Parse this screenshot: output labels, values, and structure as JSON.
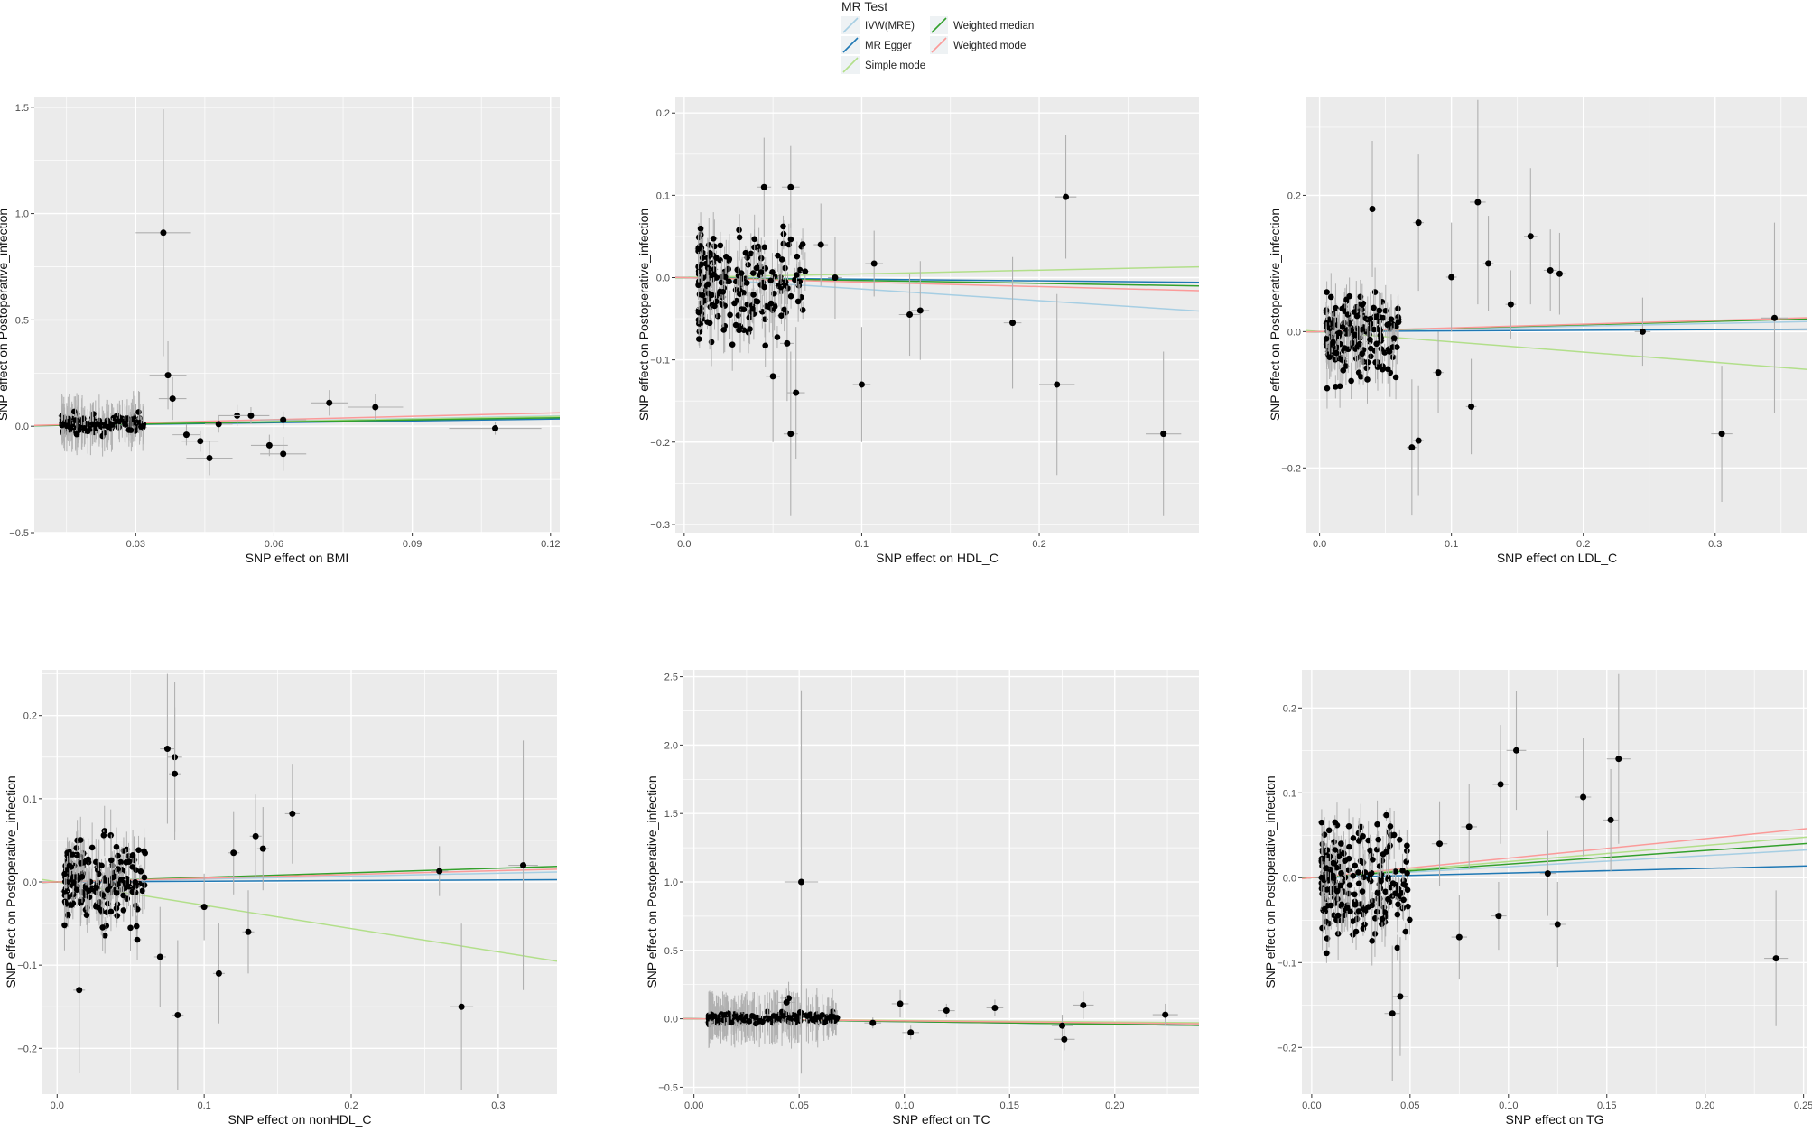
{
  "legend": {
    "title": "MR Test",
    "placement": "top-center",
    "items": [
      {
        "label": "IVW(MRE)",
        "color": "#a6cee3"
      },
      {
        "label": "MR Egger",
        "color": "#1f78b4"
      },
      {
        "label": "Simple mode",
        "color": "#b2df8a"
      },
      {
        "label": "Weighted median",
        "color": "#33a02c"
      },
      {
        "label": "Weighted mode",
        "color": "#fb9a99"
      }
    ]
  },
  "style": {
    "panel_bg": "#ebebeb",
    "grid_color": "#ffffff",
    "point_color": "#000000",
    "errorbar_color": "#b0b0b0"
  },
  "chart_data": [
    {
      "type": "scatter",
      "title": "",
      "xlabel": "SNP effect on BMI",
      "ylabel": "SNP effect on Postoperative_infection",
      "xlim": [
        0.008,
        0.122
      ],
      "ylim": [
        -0.5,
        1.55
      ],
      "xticks": [
        0.03,
        0.06,
        0.09,
        0.12
      ],
      "xtick_labels": [
        "0.03",
        "0.06",
        "0.09",
        "0.12"
      ],
      "yticks": [
        -0.5,
        0.0,
        0.5,
        1.0,
        1.5
      ],
      "ytick_labels": [
        "−0.5",
        "0.0",
        "0.5",
        "1.0",
        "1.5"
      ],
      "cluster": {
        "x": [
          0.014,
          0.032
        ],
        "y": [
          -0.06,
          0.08
        ],
        "n": 150
      },
      "points": [
        {
          "x": 0.036,
          "y": 0.91,
          "ex": 0.006,
          "ey": 0.58
        },
        {
          "x": 0.037,
          "y": 0.24,
          "ex": 0.004,
          "ey": 0.16
        },
        {
          "x": 0.038,
          "y": 0.13,
          "ex": 0.003,
          "ey": 0.1
        },
        {
          "x": 0.046,
          "y": -0.15,
          "ex": 0.005,
          "ey": 0.08
        },
        {
          "x": 0.052,
          "y": 0.05,
          "ex": 0.004,
          "ey": 0.05
        },
        {
          "x": 0.055,
          "y": 0.05,
          "ex": 0.004,
          "ey": 0.04
        },
        {
          "x": 0.059,
          "y": -0.09,
          "ex": 0.004,
          "ey": 0.05
        },
        {
          "x": 0.062,
          "y": 0.03,
          "ex": 0.005,
          "ey": 0.04
        },
        {
          "x": 0.062,
          "y": -0.13,
          "ex": 0.005,
          "ey": 0.08
        },
        {
          "x": 0.072,
          "y": 0.11,
          "ex": 0.004,
          "ey": 0.06
        },
        {
          "x": 0.082,
          "y": 0.09,
          "ex": 0.006,
          "ey": 0.06
        },
        {
          "x": 0.108,
          "y": -0.01,
          "ex": 0.01,
          "ey": 0.03
        },
        {
          "x": 0.044,
          "y": -0.07,
          "ex": 0.004,
          "ey": 0.05
        },
        {
          "x": 0.048,
          "y": 0.01,
          "ex": 0.003,
          "ey": 0.04
        },
        {
          "x": 0.041,
          "y": -0.04,
          "ex": 0.003,
          "ey": 0.05
        }
      ],
      "lines": [
        {
          "method": "IVW(MRE)",
          "slope": 0.4
        },
        {
          "method": "MR Egger",
          "slope": 0.28
        },
        {
          "method": "Simple mode",
          "slope": 0.38
        },
        {
          "method": "Weighted median",
          "slope": 0.33
        },
        {
          "method": "Weighted mode",
          "slope": 0.52
        }
      ]
    },
    {
      "type": "scatter",
      "title": "",
      "xlabel": "SNP effect on HDL_C",
      "ylabel": "SNP effect on Postoperative_infection",
      "xlim": [
        -0.005,
        0.29
      ],
      "ylim": [
        -0.31,
        0.22
      ],
      "xticks": [
        0.0,
        0.1,
        0.2
      ],
      "xtick_labels": [
        "0.0",
        "0.1",
        "0.2"
      ],
      "yticks": [
        -0.3,
        -0.2,
        -0.1,
        0.0,
        0.1,
        0.2
      ],
      "ytick_labels": [
        "−0.3",
        "−0.2",
        "−0.1",
        "0.0",
        "0.1",
        "0.2"
      ],
      "cluster": {
        "x": [
          0.008,
          0.07
        ],
        "y": [
          -0.1,
          0.08
        ],
        "n": 200
      },
      "points": [
        {
          "x": 0.06,
          "y": 0.11,
          "ex": 0.005,
          "ey": 0.05
        },
        {
          "x": 0.045,
          "y": 0.11,
          "ex": 0.004,
          "ey": 0.06
        },
        {
          "x": 0.06,
          "y": -0.19,
          "ex": 0.004,
          "ey": 0.1
        },
        {
          "x": 0.063,
          "y": -0.14,
          "ex": 0.005,
          "ey": 0.08
        },
        {
          "x": 0.1,
          "y": -0.13,
          "ex": 0.005,
          "ey": 0.07
        },
        {
          "x": 0.107,
          "y": 0.017,
          "ex": 0.005,
          "ey": 0.04
        },
        {
          "x": 0.127,
          "y": -0.045,
          "ex": 0.006,
          "ey": 0.05
        },
        {
          "x": 0.133,
          "y": -0.04,
          "ex": 0.005,
          "ey": 0.06
        },
        {
          "x": 0.185,
          "y": -0.055,
          "ex": 0.005,
          "ey": 0.08
        },
        {
          "x": 0.21,
          "y": -0.13,
          "ex": 0.01,
          "ey": 0.11
        },
        {
          "x": 0.215,
          "y": 0.098,
          "ex": 0.006,
          "ey": 0.075
        },
        {
          "x": 0.27,
          "y": -0.19,
          "ex": 0.01,
          "ey": 0.1
        },
        {
          "x": 0.085,
          "y": 0.0,
          "ex": 0.004,
          "ey": 0.05
        },
        {
          "x": 0.077,
          "y": 0.04,
          "ex": 0.004,
          "ey": 0.05
        },
        {
          "x": 0.05,
          "y": -0.12,
          "ex": 0.004,
          "ey": 0.08
        },
        {
          "x": 0.058,
          "y": -0.08,
          "ex": 0.004,
          "ey": 0.07
        }
      ],
      "lines": [
        {
          "method": "IVW(MRE)",
          "slope": -0.14
        },
        {
          "method": "MR Egger",
          "slope": -0.02
        },
        {
          "method": "Simple mode",
          "slope": 0.045
        },
        {
          "method": "Weighted median",
          "slope": -0.035
        },
        {
          "method": "Weighted mode",
          "slope": -0.055
        }
      ]
    },
    {
      "type": "scatter",
      "title": "",
      "xlabel": "SNP effect on LDL_C",
      "ylabel": "SNP effect on Postoperative_infection",
      "xlim": [
        -0.01,
        0.37
      ],
      "ylim": [
        -0.295,
        0.345
      ],
      "xticks": [
        0.0,
        0.1,
        0.2,
        0.3
      ],
      "xtick_labels": [
        "0.0",
        "0.1",
        "0.2",
        "0.3"
      ],
      "yticks": [
        -0.2,
        0.0,
        0.2
      ],
      "ytick_labels": [
        "−0.2",
        "0.0",
        "0.2"
      ],
      "cluster": {
        "x": [
          0.005,
          0.06
        ],
        "y": [
          -0.1,
          0.08
        ],
        "n": 200
      },
      "points": [
        {
          "x": 0.12,
          "y": 0.19,
          "ex": 0.006,
          "ey": 0.15
        },
        {
          "x": 0.04,
          "y": 0.18,
          "ex": 0.004,
          "ey": 0.1
        },
        {
          "x": 0.075,
          "y": 0.16,
          "ex": 0.004,
          "ey": 0.1
        },
        {
          "x": 0.16,
          "y": 0.14,
          "ex": 0.005,
          "ey": 0.1
        },
        {
          "x": 0.175,
          "y": 0.09,
          "ex": 0.005,
          "ey": 0.06
        },
        {
          "x": 0.182,
          "y": 0.085,
          "ex": 0.005,
          "ey": 0.06
        },
        {
          "x": 0.245,
          "y": 0.0,
          "ex": 0.006,
          "ey": 0.05
        },
        {
          "x": 0.305,
          "y": -0.15,
          "ex": 0.008,
          "ey": 0.1
        },
        {
          "x": 0.345,
          "y": 0.02,
          "ex": 0.01,
          "ey": 0.14
        },
        {
          "x": 0.07,
          "y": -0.17,
          "ex": 0.004,
          "ey": 0.1
        },
        {
          "x": 0.075,
          "y": -0.16,
          "ex": 0.004,
          "ey": 0.08
        },
        {
          "x": 0.115,
          "y": -0.11,
          "ex": 0.004,
          "ey": 0.07
        },
        {
          "x": 0.1,
          "y": 0.08,
          "ex": 0.004,
          "ey": 0.08
        },
        {
          "x": 0.128,
          "y": 0.1,
          "ex": 0.004,
          "ey": 0.07
        },
        {
          "x": 0.145,
          "y": 0.04,
          "ex": 0.004,
          "ey": 0.05
        },
        {
          "x": 0.09,
          "y": -0.06,
          "ex": 0.004,
          "ey": 0.06
        }
      ],
      "lines": [
        {
          "method": "IVW(MRE)",
          "slope": 0.04
        },
        {
          "method": "MR Egger",
          "slope": 0.01
        },
        {
          "method": "Simple mode",
          "slope": -0.15
        },
        {
          "method": "Weighted median",
          "slope": 0.05
        },
        {
          "method": "Weighted mode",
          "slope": 0.055
        }
      ]
    },
    {
      "type": "scatter",
      "title": "",
      "xlabel": "SNP effect on nonHDL_C",
      "ylabel": "SNP effect on Postoperative_infection",
      "xlim": [
        -0.01,
        0.34
      ],
      "ylim": [
        -0.255,
        0.255
      ],
      "xticks": [
        0.0,
        0.1,
        0.2,
        0.3
      ],
      "xtick_labels": [
        "0.0",
        "0.1",
        "0.2",
        "0.3"
      ],
      "yticks": [
        -0.2,
        -0.1,
        0.0,
        0.1,
        0.2
      ],
      "ytick_labels": [
        "−0.2",
        "−0.1",
        "0.0",
        "0.1",
        "0.2"
      ],
      "cluster": {
        "x": [
          0.005,
          0.06
        ],
        "y": [
          -0.08,
          0.08
        ],
        "n": 200
      },
      "points": [
        {
          "x": 0.075,
          "y": 0.16,
          "ex": 0.005,
          "ey": 0.09
        },
        {
          "x": 0.08,
          "y": 0.15,
          "ex": 0.005,
          "ey": 0.09
        },
        {
          "x": 0.08,
          "y": 0.13,
          "ex": 0.004,
          "ey": 0.08
        },
        {
          "x": 0.082,
          "y": -0.16,
          "ex": 0.004,
          "ey": 0.09
        },
        {
          "x": 0.11,
          "y": -0.11,
          "ex": 0.004,
          "ey": 0.06
        },
        {
          "x": 0.135,
          "y": 0.055,
          "ex": 0.004,
          "ey": 0.05
        },
        {
          "x": 0.14,
          "y": 0.04,
          "ex": 0.004,
          "ey": 0.05
        },
        {
          "x": 0.16,
          "y": 0.082,
          "ex": 0.005,
          "ey": 0.06
        },
        {
          "x": 0.26,
          "y": 0.013,
          "ex": 0.006,
          "ey": 0.03
        },
        {
          "x": 0.275,
          "y": -0.15,
          "ex": 0.008,
          "ey": 0.1
        },
        {
          "x": 0.317,
          "y": 0.02,
          "ex": 0.01,
          "ey": 0.15
        },
        {
          "x": 0.015,
          "y": -0.13,
          "ex": 0.004,
          "ey": 0.1
        },
        {
          "x": 0.13,
          "y": -0.06,
          "ex": 0.004,
          "ey": 0.05
        },
        {
          "x": 0.1,
          "y": -0.03,
          "ex": 0.004,
          "ey": 0.04
        },
        {
          "x": 0.07,
          "y": -0.09,
          "ex": 0.004,
          "ey": 0.06
        },
        {
          "x": 0.12,
          "y": 0.035,
          "ex": 0.004,
          "ey": 0.05
        }
      ],
      "lines": [
        {
          "method": "IVW(MRE)",
          "slope": 0.035
        },
        {
          "method": "MR Egger",
          "slope": 0.008
        },
        {
          "method": "Simple mode",
          "slope": -0.28
        },
        {
          "method": "Weighted median",
          "slope": 0.055
        },
        {
          "method": "Weighted mode",
          "slope": 0.045
        }
      ]
    },
    {
      "type": "scatter",
      "title": "",
      "xlabel": "SNP effect on TC",
      "ylabel": "SNP effect on Postoperative_infection",
      "xlim": [
        -0.005,
        0.24
      ],
      "ylim": [
        -0.55,
        2.55
      ],
      "xticks": [
        0.0,
        0.05,
        0.1,
        0.15,
        0.2
      ],
      "xtick_labels": [
        "0.00",
        "0.05",
        "0.10",
        "0.15",
        "0.20"
      ],
      "yticks": [
        -0.5,
        0.0,
        0.5,
        1.0,
        1.5,
        2.0,
        2.5
      ],
      "ytick_labels": [
        "−0.5",
        "0.0",
        "0.5",
        "1.0",
        "1.5",
        "2.0",
        "2.5"
      ],
      "cluster": {
        "x": [
          0.007,
          0.07
        ],
        "y": [
          -0.05,
          0.06
        ],
        "n": 230
      },
      "points": [
        {
          "x": 0.051,
          "y": 1.0,
          "ex": 0.008,
          "ey": 1.4
        },
        {
          "x": 0.045,
          "y": 0.15,
          "ex": 0.004,
          "ey": 0.12
        },
        {
          "x": 0.044,
          "y": 0.12,
          "ex": 0.004,
          "ey": 0.1
        },
        {
          "x": 0.098,
          "y": 0.11,
          "ex": 0.004,
          "ey": 0.1
        },
        {
          "x": 0.175,
          "y": -0.05,
          "ex": 0.005,
          "ey": 0.08
        },
        {
          "x": 0.176,
          "y": -0.15,
          "ex": 0.005,
          "ey": 0.08
        },
        {
          "x": 0.185,
          "y": 0.1,
          "ex": 0.005,
          "ey": 0.1
        },
        {
          "x": 0.224,
          "y": 0.03,
          "ex": 0.006,
          "ey": 0.08
        },
        {
          "x": 0.12,
          "y": 0.06,
          "ex": 0.004,
          "ey": 0.05
        },
        {
          "x": 0.143,
          "y": 0.08,
          "ex": 0.004,
          "ey": 0.06
        },
        {
          "x": 0.103,
          "y": -0.1,
          "ex": 0.004,
          "ey": 0.05
        },
        {
          "x": 0.085,
          "y": -0.03,
          "ex": 0.004,
          "ey": 0.04
        }
      ],
      "lines": [
        {
          "method": "IVW(MRE)",
          "slope": -0.17
        },
        {
          "method": "MR Egger",
          "slope": -0.2
        },
        {
          "method": "Simple mode",
          "slope": -0.12
        },
        {
          "method": "Weighted median",
          "slope": -0.2
        },
        {
          "method": "Weighted mode",
          "slope": -0.15
        }
      ]
    },
    {
      "type": "scatter",
      "title": "",
      "xlabel": "SNP effect on TG",
      "ylabel": "SNP effect on Postoperative_infection",
      "xlim": [
        -0.005,
        0.252
      ],
      "ylim": [
        -0.255,
        0.245
      ],
      "xticks": [
        0.0,
        0.05,
        0.1,
        0.15,
        0.2,
        0.25
      ],
      "xtick_labels": [
        "0.00",
        "0.05",
        "0.10",
        "0.15",
        "0.20",
        "0.25"
      ],
      "yticks": [
        -0.2,
        -0.1,
        0.0,
        0.1,
        0.2
      ],
      "ytick_labels": [
        "−0.2",
        "−0.1",
        "0.0",
        "0.1",
        "0.2"
      ],
      "cluster": {
        "x": [
          0.005,
          0.05
        ],
        "y": [
          -0.1,
          0.09
        ],
        "n": 230
      },
      "points": [
        {
          "x": 0.104,
          "y": 0.15,
          "ex": 0.005,
          "ey": 0.07
        },
        {
          "x": 0.156,
          "y": 0.14,
          "ex": 0.006,
          "ey": 0.1
        },
        {
          "x": 0.096,
          "y": 0.11,
          "ex": 0.004,
          "ey": 0.07
        },
        {
          "x": 0.138,
          "y": 0.095,
          "ex": 0.004,
          "ey": 0.07
        },
        {
          "x": 0.152,
          "y": 0.068,
          "ex": 0.004,
          "ey": 0.06
        },
        {
          "x": 0.12,
          "y": 0.005,
          "ex": 0.004,
          "ey": 0.05
        },
        {
          "x": 0.125,
          "y": -0.055,
          "ex": 0.004,
          "ey": 0.05
        },
        {
          "x": 0.095,
          "y": -0.045,
          "ex": 0.004,
          "ey": 0.04
        },
        {
          "x": 0.236,
          "y": -0.095,
          "ex": 0.006,
          "ey": 0.08
        },
        {
          "x": 0.041,
          "y": -0.16,
          "ex": 0.004,
          "ey": 0.08
        },
        {
          "x": 0.045,
          "y": -0.14,
          "ex": 0.004,
          "ey": 0.07
        },
        {
          "x": 0.075,
          "y": -0.07,
          "ex": 0.004,
          "ey": 0.05
        },
        {
          "x": 0.065,
          "y": 0.04,
          "ex": 0.004,
          "ey": 0.05
        },
        {
          "x": 0.08,
          "y": 0.06,
          "ex": 0.004,
          "ey": 0.05
        }
      ],
      "lines": [
        {
          "method": "IVW(MRE)",
          "slope": 0.13
        },
        {
          "method": "MR Egger",
          "slope": 0.055
        },
        {
          "method": "Simple mode",
          "slope": 0.19
        },
        {
          "method": "Weighted median",
          "slope": 0.16
        },
        {
          "method": "Weighted mode",
          "slope": 0.23
        }
      ]
    }
  ]
}
